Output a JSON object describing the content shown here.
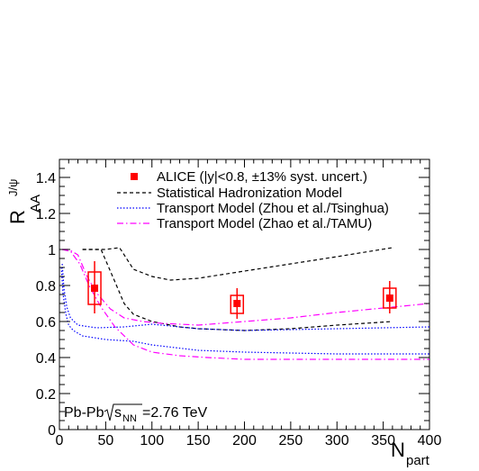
{
  "chart_data": {
    "type": "scatter",
    "title": "",
    "xlabel": {
      "main": "N",
      "sub": "part"
    },
    "ylabel": {
      "main": "R",
      "sub": "AA",
      "sup": "J/ψ"
    },
    "xlim": [
      0,
      400
    ],
    "ylim": [
      0,
      1.5
    ],
    "x_ticks": [
      0,
      50,
      100,
      150,
      200,
      250,
      300,
      350,
      400
    ],
    "y_ticks": [
      0,
      0.2,
      0.4,
      0.6,
      0.8,
      1,
      1.2,
      1.4
    ],
    "y_tick_labels": [
      "0",
      "0.2",
      "0.4",
      "0.6",
      "0.8",
      "1",
      "1.2",
      "1.4"
    ],
    "grid": false,
    "legend_position": "top-right",
    "annotation": {
      "system": "Pb-Pb",
      "energy_prefix": "s",
      "energy_sub": "NN",
      "energy_value": "=2.76 TeV"
    },
    "data_series": {
      "name": "ALICE (|y|<0.8, ±13% syst. uncert.)",
      "color": "#ff0000",
      "points": [
        {
          "x": 38,
          "y": 0.785,
          "stat_low": 0.645,
          "stat_high": 0.935,
          "syst_low": 0.695,
          "syst_high": 0.875
        },
        {
          "x": 192,
          "y": 0.7,
          "stat_low": 0.615,
          "stat_high": 0.785,
          "syst_low": 0.645,
          "syst_high": 0.745
        },
        {
          "x": 357,
          "y": 0.73,
          "stat_low": 0.645,
          "stat_high": 0.825,
          "syst_low": 0.675,
          "syst_high": 0.785
        }
      ]
    },
    "model_series": [
      {
        "name": "Statistical Hadronization Model",
        "color": "#000000",
        "style": "dashed",
        "bands": [
          [
            [
              25,
              1.0
            ],
            [
              38,
              1.0
            ],
            [
              50,
              1.0
            ],
            [
              65,
              1.01
            ],
            [
              80,
              0.89
            ],
            [
              100,
              0.85
            ],
            [
              120,
              0.83
            ],
            [
              150,
              0.84
            ],
            [
              200,
              0.88
            ],
            [
              250,
              0.92
            ],
            [
              300,
              0.96
            ],
            [
              360,
              1.01
            ]
          ],
          [
            [
              25,
              1.0
            ],
            [
              45,
              1.0
            ],
            [
              60,
              0.82
            ],
            [
              70,
              0.7
            ],
            [
              80,
              0.64
            ],
            [
              100,
              0.6
            ],
            [
              130,
              0.57
            ],
            [
              150,
              0.56
            ],
            [
              200,
              0.55
            ],
            [
              250,
              0.56
            ],
            [
              300,
              0.58
            ],
            [
              360,
              0.6
            ]
          ]
        ]
      },
      {
        "name": "Transport Model (Zhou et al./Tsinghua)",
        "color": "#0000ff",
        "style": "dotted",
        "bands": [
          [
            [
              3,
              0.92
            ],
            [
              5,
              0.78
            ],
            [
              8,
              0.68
            ],
            [
              12,
              0.62
            ],
            [
              20,
              0.58
            ],
            [
              40,
              0.565
            ],
            [
              70,
              0.57
            ],
            [
              100,
              0.585
            ],
            [
              150,
              0.56
            ],
            [
              200,
              0.55
            ],
            [
              250,
              0.555
            ],
            [
              300,
              0.56
            ],
            [
              400,
              0.57
            ]
          ],
          [
            [
              2,
              0.9
            ],
            [
              4,
              0.75
            ],
            [
              7,
              0.64
            ],
            [
              10,
              0.58
            ],
            [
              15,
              0.55
            ],
            [
              25,
              0.52
            ],
            [
              50,
              0.5
            ],
            [
              80,
              0.49
            ],
            [
              100,
              0.47
            ],
            [
              150,
              0.44
            ],
            [
              200,
              0.43
            ],
            [
              300,
              0.42
            ],
            [
              400,
              0.42
            ]
          ]
        ]
      },
      {
        "name": "Transport Model (Zhao et al./TAMU)",
        "color": "#ff00ff",
        "style": "dashdot",
        "bands": [
          [
            [
              3,
              1.0
            ],
            [
              10,
              1.0
            ],
            [
              20,
              0.97
            ],
            [
              30,
              0.85
            ],
            [
              40,
              0.76
            ],
            [
              55,
              0.67
            ],
            [
              70,
              0.62
            ],
            [
              90,
              0.6
            ],
            [
              110,
              0.59
            ],
            [
              130,
              0.585
            ],
            [
              150,
              0.58
            ],
            [
              200,
              0.6
            ],
            [
              250,
              0.62
            ],
            [
              300,
              0.65
            ],
            [
              360,
              0.68
            ],
            [
              400,
              0.7
            ]
          ],
          [
            [
              3,
              1.0
            ],
            [
              12,
              0.99
            ],
            [
              22,
              0.92
            ],
            [
              32,
              0.8
            ],
            [
              45,
              0.68
            ],
            [
              60,
              0.57
            ],
            [
              80,
              0.47
            ],
            [
              100,
              0.43
            ],
            [
              130,
              0.41
            ],
            [
              160,
              0.4
            ],
            [
              200,
              0.39
            ],
            [
              250,
              0.39
            ],
            [
              300,
              0.39
            ],
            [
              400,
              0.39
            ]
          ]
        ]
      }
    ]
  }
}
